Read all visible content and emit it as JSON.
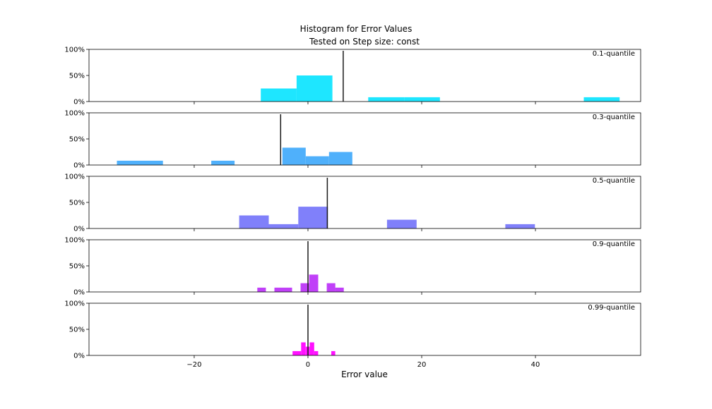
{
  "chart_data": {
    "type": "bar",
    "title": "Histogram for Error Values",
    "subtitle": "Tested on Step size: const",
    "xlabel": "Error value",
    "xlim": [
      -38.5,
      58.5
    ],
    "ylim": [
      0,
      1.0
    ],
    "x_ticks": [
      -20,
      0,
      20,
      40
    ],
    "x_tick_labels": [
      "−20",
      "0",
      "20",
      "40"
    ],
    "y_ticks": [
      0,
      0.5,
      1.0
    ],
    "y_tick_labels": [
      "0%",
      "50%",
      "100%"
    ],
    "grid": false,
    "series": [
      {
        "name": "0.1-quantile",
        "color": "#1ee6ff",
        "marker_x": 6.2,
        "bins": [
          {
            "x0": -8.3,
            "x1": -2.0,
            "value": 0.25
          },
          {
            "x0": -2.0,
            "x1": 4.3,
            "value": 0.5
          },
          {
            "x0": 10.6,
            "x1": 16.9,
            "value": 0.083
          },
          {
            "x0": 16.9,
            "x1": 23.2,
            "value": 0.083
          },
          {
            "x0": 48.5,
            "x1": 54.8,
            "value": 0.083
          }
        ]
      },
      {
        "name": "0.3-quantile",
        "color": "#4fb0fb",
        "marker_x": -4.8,
        "bins": [
          {
            "x0": -33.6,
            "x1": -25.5,
            "value": 0.083
          },
          {
            "x0": -17.0,
            "x1": -12.9,
            "value": 0.083
          },
          {
            "x0": -4.5,
            "x1": -0.4,
            "value": 0.333
          },
          {
            "x0": -0.4,
            "x1": 3.7,
            "value": 0.167
          },
          {
            "x0": 3.7,
            "x1": 7.8,
            "value": 0.25
          }
        ]
      },
      {
        "name": "0.5-quantile",
        "color": "#8080fa",
        "marker_x": 3.4,
        "bins": [
          {
            "x0": -12.1,
            "x1": -6.9,
            "value": 0.25
          },
          {
            "x0": -6.9,
            "x1": -1.7,
            "value": 0.083
          },
          {
            "x0": -1.7,
            "x1": 3.5,
            "value": 0.417
          },
          {
            "x0": 13.9,
            "x1": 19.1,
            "value": 0.167
          },
          {
            "x0": 34.7,
            "x1": 39.9,
            "value": 0.083
          }
        ]
      },
      {
        "name": "0.9-quantile",
        "color": "#c040f8",
        "marker_x": 0.0,
        "bins": [
          {
            "x0": -8.9,
            "x1": -7.4,
            "value": 0.083
          },
          {
            "x0": -5.9,
            "x1": -2.8,
            "value": 0.083
          },
          {
            "x0": -1.3,
            "x1": 0.2,
            "value": 0.167
          },
          {
            "x0": 0.2,
            "x1": 1.8,
            "value": 0.333
          },
          {
            "x0": 3.3,
            "x1": 4.8,
            "value": 0.167
          },
          {
            "x0": 4.8,
            "x1": 6.3,
            "value": 0.083
          }
        ]
      },
      {
        "name": "0.99-quantile",
        "color": "#ff10ff",
        "marker_x": 0.0,
        "bins": [
          {
            "x0": -2.7,
            "x1": -1.2,
            "value": 0.083
          },
          {
            "x0": -1.2,
            "x1": -0.4,
            "value": 0.25
          },
          {
            "x0": -0.4,
            "x1": 0.3,
            "value": 0.167
          },
          {
            "x0": 0.3,
            "x1": 1.1,
            "value": 0.25
          },
          {
            "x0": 1.1,
            "x1": 1.8,
            "value": 0.083
          },
          {
            "x0": 4.1,
            "x1": 4.8,
            "value": 0.083
          }
        ]
      }
    ]
  }
}
